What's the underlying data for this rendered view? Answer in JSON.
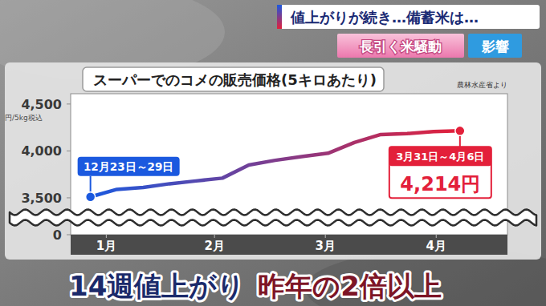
{
  "header": {
    "headline": "値上がりが続き…備蓄米は…",
    "tags": [
      "長引く米騒動",
      "影響"
    ]
  },
  "caption": [
    "14週値上がり",
    "昨年の2倍以上"
  ],
  "chart_data": {
    "type": "line",
    "title": "スーパーでのコメの販売価格(5キロあたり)",
    "source": "農林水産省より",
    "ylabel": "円/5kg税込",
    "x": [
      0,
      1,
      2,
      3,
      4,
      5,
      6,
      7,
      8,
      9,
      10,
      11,
      12,
      13,
      14
    ],
    "values": [
      3510,
      3590,
      3610,
      3650,
      3680,
      3710,
      3850,
      3900,
      3940,
      3975,
      4090,
      4175,
      4185,
      4206,
      4214
    ],
    "value_labels": [
      null,
      null,
      null,
      null,
      null,
      null,
      null,
      null,
      null,
      null,
      null,
      null,
      null,
      null,
      "4,214円"
    ],
    "xlim": [
      -0.75,
      15.8
    ],
    "xticks": [
      {
        "value": 0.6,
        "label": "1月"
      },
      {
        "value": 4.7,
        "label": "2月"
      },
      {
        "value": 8.9,
        "label": "3月"
      },
      {
        "value": 13.1,
        "label": "4月"
      }
    ],
    "ylim": [
      0,
      4610
    ],
    "yticks": [
      0,
      {
        "value": 3500,
        "label": "3,500"
      },
      {
        "value": 4000,
        "label": "4,000"
      },
      {
        "value": 4500,
        "label": "4,500"
      }
    ],
    "axis_break": [
      0,
      3380
    ],
    "annotations": [
      {
        "text": "12月23日～29日",
        "x": 0
      },
      {
        "text": "3月31日～4月6日",
        "x": 14
      }
    ],
    "colors": [
      "#1b59df",
      "#e3203a"
    ],
    "grid": false
  }
}
